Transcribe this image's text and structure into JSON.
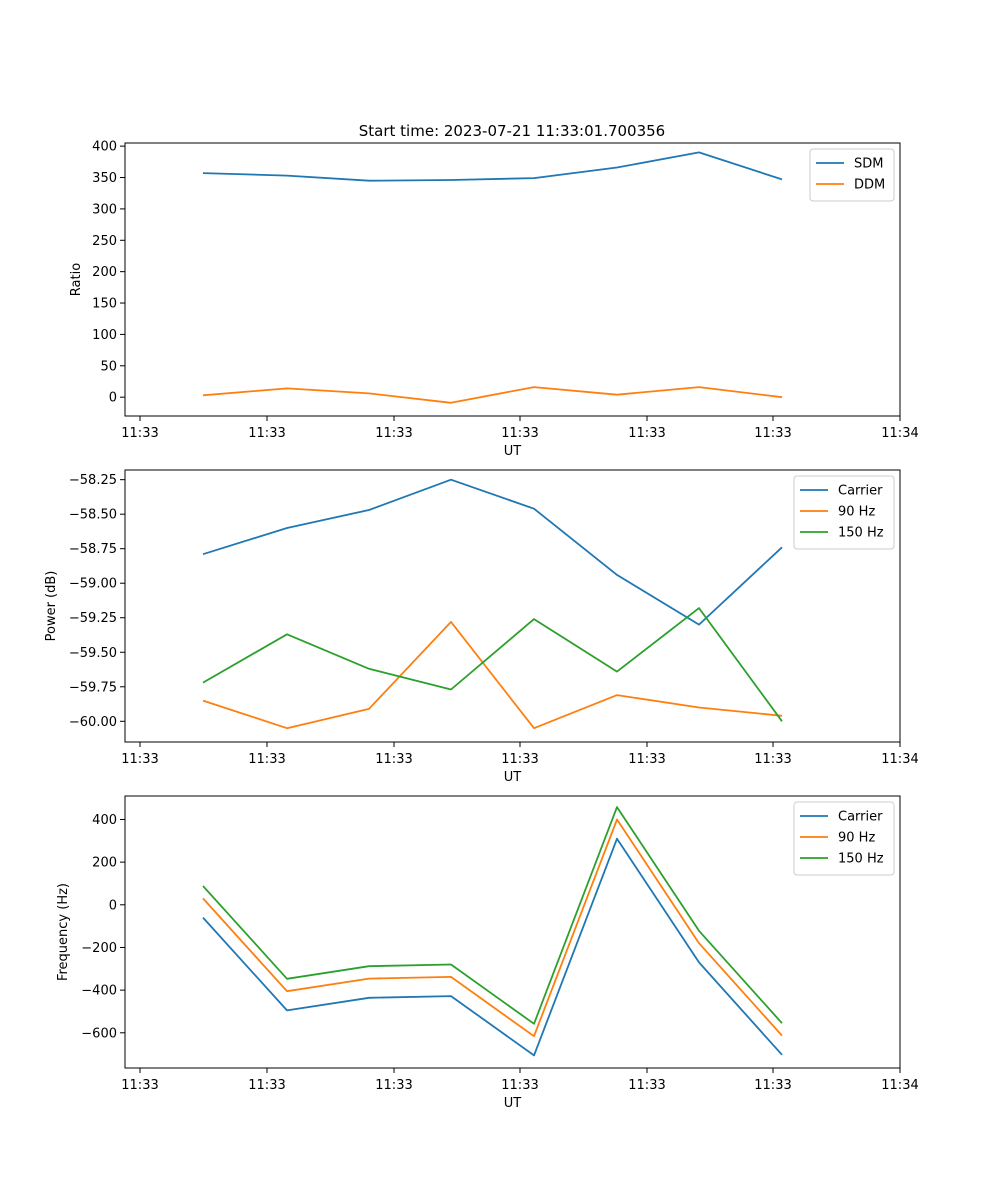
{
  "figure_title": "Start time: 2023-07-21 11:33:01.700356",
  "x_tick_labels": [
    "11:33",
    "11:33",
    "11:33",
    "11:33",
    "11:33",
    "11:33",
    "11:34"
  ],
  "chart_data": [
    {
      "type": "line",
      "title": "Start time: 2023-07-21 11:33:01.700356",
      "xlabel": "UT",
      "ylabel": "Ratio",
      "x": [
        1,
        2,
        3,
        4,
        5,
        6,
        7,
        8
      ],
      "ylim": [
        -30,
        405
      ],
      "yticks": [
        0,
        50,
        100,
        150,
        200,
        250,
        300,
        350,
        400
      ],
      "legend_position": "top-right",
      "series": [
        {
          "name": "SDM",
          "color": "#1f77b4",
          "values": [
            357,
            353,
            345,
            346,
            349,
            366,
            390,
            347
          ]
        },
        {
          "name": "DDM",
          "color": "#ff7f0e",
          "values": [
            3,
            14,
            6,
            -9,
            16,
            4,
            16,
            0
          ]
        }
      ]
    },
    {
      "type": "line",
      "title": "",
      "xlabel": "UT",
      "ylabel": "Power (dB)",
      "x": [
        1,
        2,
        3,
        4,
        5,
        6,
        7,
        8
      ],
      "ylim": [
        -60.15,
        -58.18
      ],
      "yticks": [
        -58.25,
        -58.5,
        -58.75,
        -59.0,
        -59.25,
        -59.5,
        -59.75,
        -60.0
      ],
      "ytick_labels": [
        "−58.25",
        "−58.50",
        "−58.75",
        "−59.00",
        "−59.25",
        "−59.50",
        "−59.75",
        "−60.00"
      ],
      "legend_position": "top-right",
      "series": [
        {
          "name": "Carrier",
          "color": "#1f77b4",
          "values": [
            -58.79,
            -58.6,
            -58.47,
            -58.25,
            -58.46,
            -58.94,
            -59.3,
            -58.74
          ]
        },
        {
          "name": "90 Hz",
          "color": "#ff7f0e",
          "values": [
            -59.85,
            -60.05,
            -59.91,
            -59.28,
            -60.05,
            -59.81,
            -59.9,
            -59.96
          ]
        },
        {
          "name": "150 Hz",
          "color": "#2ca02c",
          "values": [
            -59.72,
            -59.37,
            -59.62,
            -59.77,
            -59.26,
            -59.64,
            -59.18,
            -60.0
          ]
        }
      ]
    },
    {
      "type": "line",
      "title": "",
      "xlabel": "UT",
      "ylabel": "Frequency (Hz)",
      "x": [
        1,
        2,
        3,
        4,
        5,
        6,
        7,
        8
      ],
      "ylim": [
        -765,
        510
      ],
      "yticks": [
        400,
        200,
        0,
        -200,
        -400,
        -600
      ],
      "ytick_labels": [
        "400",
        "200",
        "0",
        "−200",
        "−400",
        "−600"
      ],
      "legend_position": "top-right",
      "series": [
        {
          "name": "Carrier",
          "color": "#1f77b4",
          "values": [
            -60,
            -495,
            -436,
            -428,
            -706,
            310,
            -270,
            -703
          ]
        },
        {
          "name": "90 Hz",
          "color": "#ff7f0e",
          "values": [
            30,
            -405,
            -346,
            -338,
            -616,
            400,
            -180,
            -613
          ]
        },
        {
          "name": "150 Hz",
          "color": "#2ca02c",
          "values": [
            88,
            -347,
            -288,
            -280,
            -558,
            458,
            -122,
            -555
          ]
        }
      ]
    }
  ]
}
